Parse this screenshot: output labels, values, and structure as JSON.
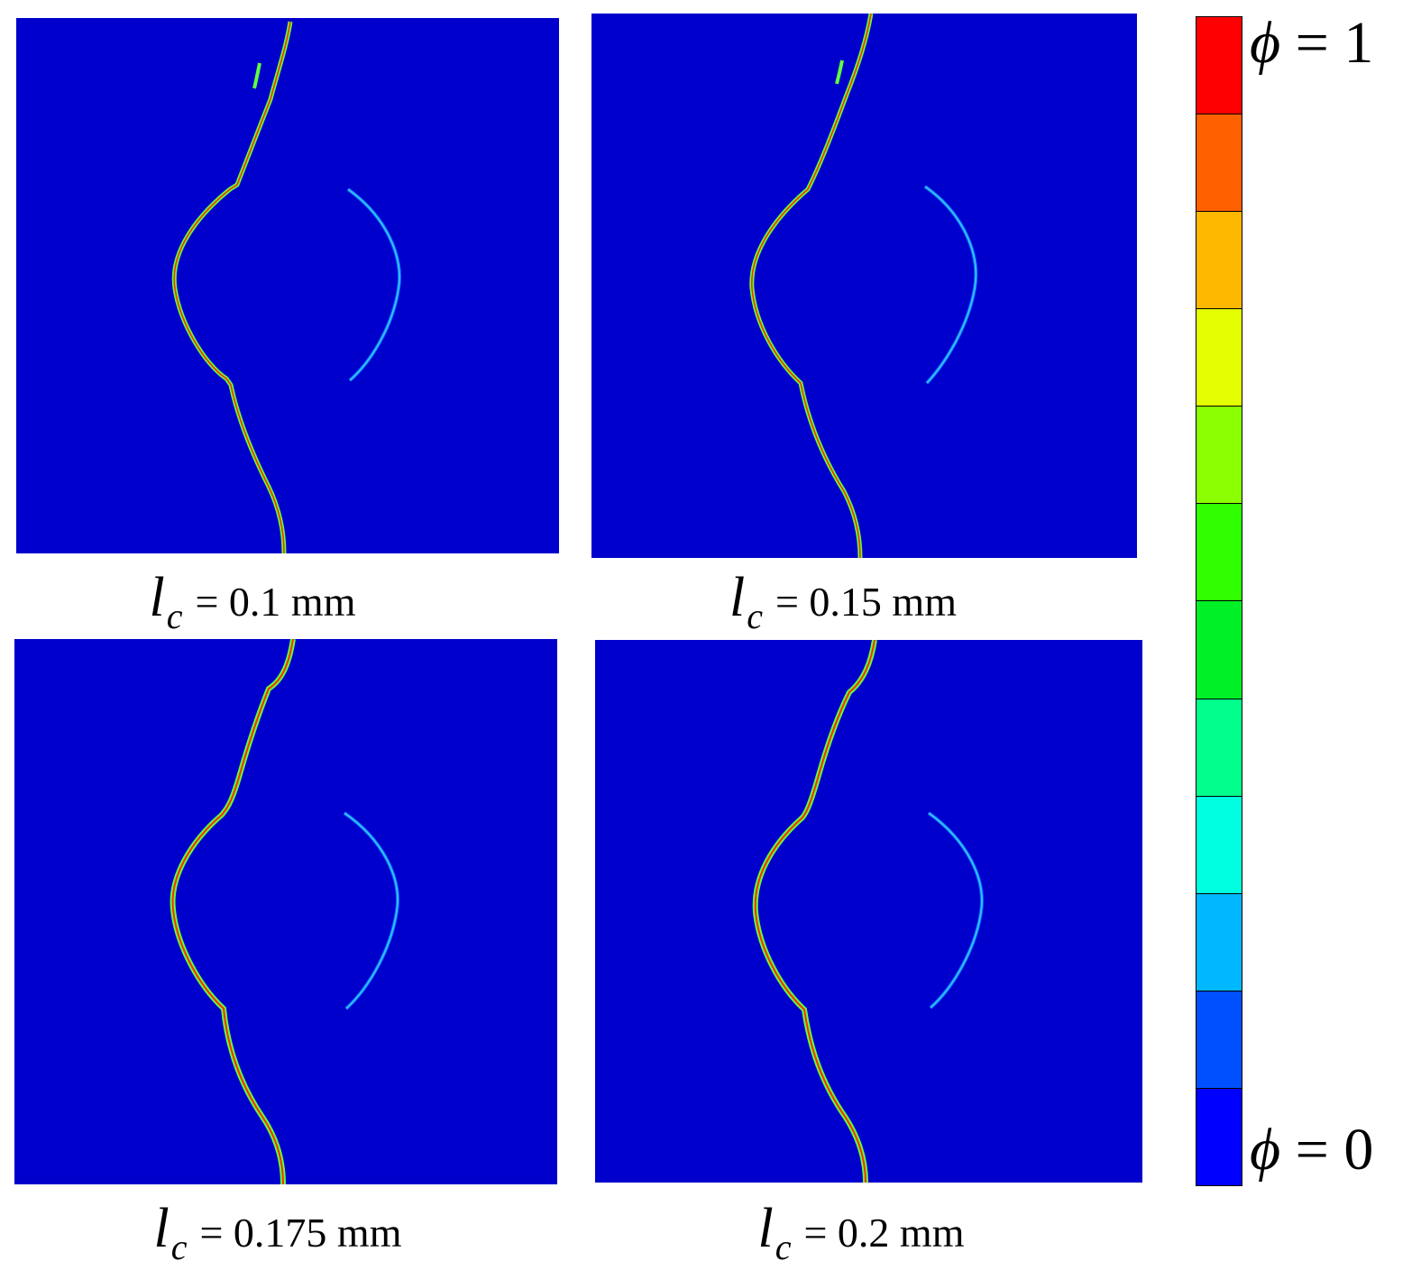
{
  "panels": [
    {
      "id": "p1",
      "lc": "0.1",
      "unit": "mm",
      "variant": "branch"
    },
    {
      "id": "p2",
      "lc": "0.15",
      "unit": "mm",
      "variant": "branch"
    },
    {
      "id": "p3",
      "lc": "0.175",
      "unit": "mm",
      "variant": "smooth"
    },
    {
      "id": "p4",
      "lc": "0.2",
      "unit": "mm",
      "variant": "smooth"
    }
  ],
  "captions": {
    "p1": {
      "symbol": "l",
      "subscript": "c",
      "value": "= 0.1 mm"
    },
    "p2": {
      "symbol": "l",
      "subscript": "c",
      "value": "= 0.15 mm"
    },
    "p3": {
      "symbol": "l",
      "subscript": "c",
      "value": "= 0.175 mm"
    },
    "p4": {
      "symbol": "l",
      "subscript": "c",
      "value": "= 0.2 mm"
    }
  },
  "colorbar": {
    "top_label": {
      "symbol": "ϕ",
      "text": " = 1"
    },
    "bottom_label": {
      "symbol": "ϕ",
      "text": " = 0"
    },
    "colors_top_to_bottom": [
      "#ff0000",
      "#ff6000",
      "#ffb800",
      "#e4ff00",
      "#8cff00",
      "#30ff00",
      "#00f028",
      "#00ff8c",
      "#00ffe0",
      "#00b8ff",
      "#0050ff",
      "#0000ff"
    ]
  },
  "field_colors": {
    "background": "#0000cc",
    "crack_core": "#ff3000",
    "crack_halo": "#60ff40",
    "arc_core": "#30c8ff",
    "arc_halo": "#1060ff"
  }
}
